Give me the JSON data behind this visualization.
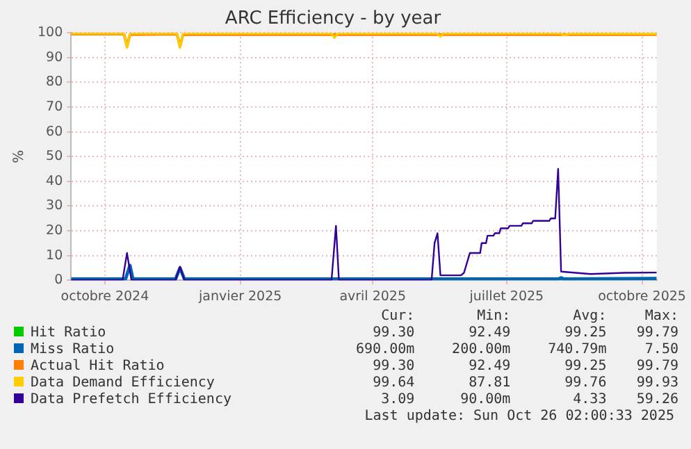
{
  "chart_data": {
    "type": "line",
    "title": "ARC Efficiency - by year",
    "ylabel": "%",
    "xlim": [
      "2024-09-23",
      "2025-10-26"
    ],
    "xticks": [
      {
        "value": "2024-10-16",
        "label": "octobre 2024"
      },
      {
        "value": "2025-01-16",
        "label": "janvier 2025"
      },
      {
        "value": "2025-04-16",
        "label": "avril 2025"
      },
      {
        "value": "2025-07-16",
        "label": "juillet 2025"
      },
      {
        "value": "2025-10-16",
        "label": "octobre 2025"
      }
    ],
    "ylim": [
      0,
      100
    ],
    "yticks": [
      0,
      10,
      20,
      30,
      40,
      50,
      60,
      70,
      80,
      90,
      100
    ],
    "grid": true,
    "legend": "bottom",
    "series": [
      {
        "name": "Hit Ratio",
        "color": "#00cc00",
        "values": [
          null
        ]
      },
      {
        "name": "Miss Ratio",
        "color": "#0066b3",
        "x": [
          "2024-09-23",
          "2024-10-30",
          "2024-11-02",
          "2024-11-04",
          "2024-12-03",
          "2024-12-06",
          "2024-12-09",
          "2025-08-20",
          "2025-08-22",
          "2025-08-24",
          "2025-10-26"
        ],
        "values": [
          0.5,
          0.5,
          6,
          0.5,
          0.5,
          5,
          0.5,
          0.5,
          1,
          0.5,
          0.7
        ]
      },
      {
        "name": "Actual Hit Ratio",
        "color": "#ff8000",
        "x": [
          "2024-09-23",
          "2024-10-29",
          "2024-10-31",
          "2024-11-02",
          "2024-12-04",
          "2024-12-06",
          "2024-12-08",
          "2025-10-26"
        ],
        "values": [
          99.5,
          99.5,
          94.5,
          99.3,
          99.5,
          94.5,
          99.3,
          99.3
        ]
      },
      {
        "name": "Data Demand Efficiency",
        "color": "#ffcc00",
        "x": [
          "2024-09-23",
          "2024-10-29",
          "2024-10-31",
          "2024-11-02",
          "2024-12-04",
          "2024-12-06",
          "2024-12-08",
          "2025-03-19",
          "2025-03-21",
          "2025-03-23",
          "2025-05-30",
          "2025-06-01",
          "2025-06-03",
          "2025-08-22",
          "2025-08-24",
          "2025-08-28",
          "2025-10-26"
        ],
        "values": [
          99.7,
          99.7,
          94,
          99.7,
          99.7,
          94,
          99.7,
          99.7,
          98,
          99.7,
          99.7,
          98.5,
          99.7,
          99.7,
          99,
          99.7,
          99.6
        ]
      },
      {
        "name": "Data Prefetch Efficiency",
        "color": "#330099",
        "x": [
          "2024-09-23",
          "2024-10-28",
          "2024-10-31",
          "2024-11-03",
          "2024-12-03",
          "2024-12-06",
          "2024-12-09",
          "2025-03-19",
          "2025-03-22",
          "2025-03-24",
          "2025-05-26",
          "2025-05-28",
          "2025-05-30",
          "2025-06-01",
          "2025-06-15",
          "2025-06-17",
          "2025-06-21",
          "2025-06-28",
          "2025-06-29",
          "2025-07-02",
          "2025-07-03",
          "2025-07-07",
          "2025-07-08",
          "2025-07-11",
          "2025-07-12",
          "2025-07-17",
          "2025-07-18",
          "2025-07-26",
          "2025-07-27",
          "2025-08-02",
          "2025-08-03",
          "2025-08-14",
          "2025-08-15",
          "2025-08-18",
          "2025-08-20",
          "2025-08-22",
          "2025-09-01",
          "2025-09-11",
          "2025-10-04",
          "2025-10-26"
        ],
        "values": [
          0.1,
          0.1,
          11,
          0.1,
          0.1,
          5.5,
          0.1,
          0.1,
          22,
          0.1,
          0.1,
          15,
          19,
          2,
          2,
          3,
          11,
          11,
          15,
          15,
          18,
          18,
          19,
          19,
          21,
          21,
          22,
          22,
          23,
          23,
          24,
          24,
          25,
          25,
          45,
          3.5,
          3,
          2.5,
          3,
          3.1
        ]
      }
    ],
    "annotations": [
      "Cur:",
      "Min:",
      "Avg:",
      "Max:",
      "99.30",
      "92.49",
      "99.25",
      "99.79",
      "690.00m",
      "200.00m",
      "740.79m",
      "7.50",
      "99.30",
      "92.49",
      "99.25",
      "99.79",
      "99.64",
      "87.81",
      "99.76",
      "99.93",
      "3.09",
      "90.00m",
      "4.33",
      "59.26",
      "Last update: Sun Oct 26 02:00:33 2025"
    ]
  }
}
